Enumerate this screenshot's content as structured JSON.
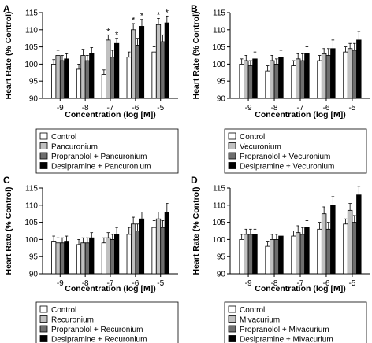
{
  "colors": {
    "series": [
      "#ffffff",
      "#c0c0c0",
      "#6e6e6e",
      "#000000"
    ],
    "stroke": "#000000"
  },
  "chart_data": [
    {
      "panel": "A",
      "type": "bar",
      "xlabel": "Concentration (log [M])",
      "ylabel": "Heart Rate (% Control)",
      "ylim": [
        90,
        115
      ],
      "yticks": [
        90,
        95,
        100,
        105,
        110,
        115
      ],
      "categories": [
        "-9",
        "-8",
        "-7",
        "-6",
        "-5"
      ],
      "series": [
        {
          "name": "Control",
          "values": [
            100,
            98.5,
            97,
            102,
            103.5
          ],
          "errors": [
            1.3,
            1.5,
            1.3,
            1.5,
            1.5
          ],
          "stars": []
        },
        {
          "name": "Pancuronium",
          "values": [
            102.5,
            102.5,
            107,
            110,
            111.5
          ],
          "errors": [
            1.5,
            1.8,
            1.5,
            1.8,
            1.8
          ],
          "stars": [
            "-7",
            "-6",
            "-5"
          ]
        },
        {
          "name": "Propranolol + Pancuronium",
          "values": [
            101,
            101,
            102,
            105.5,
            106.5
          ],
          "errors": [
            1.5,
            1.5,
            2,
            2,
            2
          ],
          "stars": []
        },
        {
          "name": "Desipramine + Pancuronium",
          "values": [
            101.5,
            103,
            106,
            111,
            112
          ],
          "errors": [
            1.5,
            1.8,
            1.5,
            2,
            2
          ],
          "stars": [
            "-7",
            "-6",
            "-5"
          ]
        }
      ]
    },
    {
      "panel": "B",
      "type": "bar",
      "xlabel": "Concentration (log [M])",
      "ylabel": "Heart Rate (% Control)",
      "ylim": [
        90,
        115
      ],
      "yticks": [
        90,
        95,
        100,
        105,
        110,
        115
      ],
      "categories": [
        "-9",
        "-8",
        "-7",
        "-6",
        "-5"
      ],
      "series": [
        {
          "name": "Control",
          "values": [
            100,
            98,
            99.5,
            101,
            103.5
          ],
          "errors": [
            1.5,
            1.5,
            1.5,
            1.5,
            1.5
          ],
          "stars": []
        },
        {
          "name": "Vecuronium",
          "values": [
            101,
            101,
            101.5,
            103,
            104.5
          ],
          "errors": [
            1.5,
            1.5,
            1.5,
            1.5,
            1.5
          ],
          "stars": []
        },
        {
          "name": "Propranolol + Vecuronium",
          "values": [
            99.5,
            100,
            101,
            102.5,
            104
          ],
          "errors": [
            1.5,
            1.5,
            2,
            2,
            2
          ],
          "stars": []
        },
        {
          "name": "Desipramine + Vecuronium",
          "values": [
            101.5,
            102,
            103,
            104.5,
            107
          ],
          "errors": [
            2,
            2,
            2,
            2.5,
            2.5
          ],
          "stars": []
        }
      ]
    },
    {
      "panel": "C",
      "type": "bar",
      "xlabel": "Concentration (log [M])",
      "ylabel": "Heart Rate (% Control)",
      "ylim": [
        90,
        115
      ],
      "yticks": [
        90,
        95,
        100,
        105,
        110,
        115
      ],
      "categories": [
        "-9",
        "-8",
        "-7",
        "-6",
        "-5"
      ],
      "series": [
        {
          "name": "Control",
          "values": [
            99.5,
            98.5,
            99,
            101.5,
            103.5
          ],
          "errors": [
            1.5,
            1.5,
            1.5,
            2,
            2
          ],
          "stars": []
        },
        {
          "name": "Recuronium",
          "values": [
            99,
            99,
            100.5,
            104.5,
            106
          ],
          "errors": [
            1.5,
            1.5,
            1.5,
            2,
            2
          ],
          "stars": []
        },
        {
          "name": "Propranolol + Recuronium",
          "values": [
            99,
            99,
            100,
            102.5,
            103.5
          ],
          "errors": [
            1.5,
            1.5,
            1.5,
            2,
            2
          ],
          "stars": []
        },
        {
          "name": "Desipramine + Recuronium",
          "values": [
            99.5,
            100.5,
            101.5,
            106,
            108
          ],
          "errors": [
            1.5,
            1.5,
            2,
            2,
            2.5
          ],
          "stars": []
        }
      ]
    },
    {
      "panel": "D",
      "type": "bar",
      "xlabel": "Concentration (log [M])",
      "ylabel": "Heart Rate (% Control)",
      "ylim": [
        90,
        115
      ],
      "yticks": [
        90,
        95,
        100,
        105,
        110,
        115
      ],
      "categories": [
        "-9",
        "-8",
        "-7",
        "-6",
        "-5"
      ],
      "series": [
        {
          "name": "Control",
          "values": [
            100,
            98,
            101,
            103,
            104.5
          ],
          "errors": [
            1.5,
            1.5,
            1.5,
            2,
            1.5
          ],
          "stars": []
        },
        {
          "name": "Mivacurium",
          "values": [
            101.5,
            100,
            102,
            107.5,
            108.5
          ],
          "errors": [
            1.5,
            1.5,
            2,
            2,
            2
          ],
          "stars": []
        },
        {
          "name": "Propranolol + Mivacurium",
          "values": [
            101.5,
            100,
            101.5,
            103,
            105
          ],
          "errors": [
            1.5,
            1.5,
            2,
            2,
            2
          ],
          "stars": []
        },
        {
          "name": "Desipramine + Mivacurium",
          "values": [
            101.5,
            101,
            103.5,
            110,
            113
          ],
          "errors": [
            1.5,
            1.5,
            2,
            2.5,
            2.5
          ],
          "stars": []
        }
      ]
    }
  ]
}
